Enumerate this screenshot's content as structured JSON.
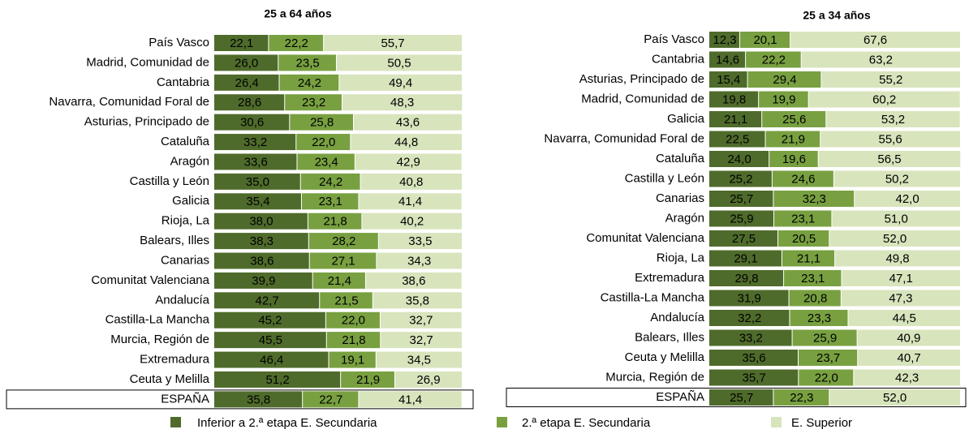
{
  "chart_data": [
    {
      "type": "stacked-bar-horizontal",
      "title": "25 a 64 años",
      "categories": [
        "País Vasco",
        "Madrid, Comunidad de",
        "Cantabria",
        "Navarra, Comunidad Foral de",
        "Asturias, Principado de",
        "Cataluña",
        "Aragón",
        "Castilla y León",
        "Galicia",
        "Rioja, La",
        "Balears, Illes",
        "Canarias",
        "Comunitat Valenciana",
        "Andalucía",
        "Castilla-La Mancha",
        "Murcia, Región de",
        "Extremadura",
        "Ceuta y Melilla",
        "ESPAÑA"
      ],
      "xlim": [
        0,
        100
      ],
      "series": [
        {
          "name": "Inferior a  2.ª etapa E. Secundaria",
          "color": "#4f6b2b",
          "values": [
            22.1,
            26.0,
            26.4,
            28.6,
            30.6,
            33.2,
            33.6,
            35.0,
            35.4,
            38.0,
            38.3,
            38.6,
            39.9,
            42.7,
            45.2,
            45.5,
            46.4,
            51.2,
            35.8
          ],
          "value_labels": [
            "22,1",
            "26,0",
            "26,4",
            "28,6",
            "30,6",
            "33,2",
            "33,6",
            "35,0",
            "35,4",
            "38,0",
            "38,3",
            "38,6",
            "39,9",
            "42,7",
            "45,2",
            "45,5",
            "46,4",
            "51,2",
            "35,8"
          ]
        },
        {
          "name": "2.ª etapa E. Secundaria",
          "color": "#78a040",
          "values": [
            22.2,
            23.5,
            24.2,
            23.2,
            25.8,
            22.0,
            23.4,
            24.2,
            23.1,
            21.8,
            28.2,
            27.1,
            21.4,
            21.5,
            22.0,
            21.8,
            19.1,
            21.9,
            22.7
          ],
          "value_labels": [
            "22,2",
            "23,5",
            "24,2",
            "23,2",
            "25,8",
            "22,0",
            "23,4",
            "24,2",
            "23,1",
            "21,8",
            "28,2",
            "27,1",
            "21,4",
            "21,5",
            "22,0",
            "21,8",
            "19,1",
            "21,9",
            "22,7"
          ]
        },
        {
          "name": "E. Superior",
          "color": "#d8e4bc",
          "values": [
            55.7,
            50.5,
            49.4,
            48.3,
            43.6,
            44.8,
            42.9,
            40.8,
            41.4,
            40.2,
            33.5,
            34.3,
            38.6,
            35.8,
            32.7,
            32.7,
            34.5,
            26.9,
            41.4
          ],
          "value_labels": [
            "55,7",
            "50,5",
            "49,4",
            "48,3",
            "43,6",
            "44,8",
            "42,9",
            "40,8",
            "41,4",
            "40,2",
            "33,5",
            "34,3",
            "38,6",
            "35,8",
            "32,7",
            "32,7",
            "34,5",
            "26,9",
            "41,4"
          ]
        }
      ]
    },
    {
      "type": "stacked-bar-horizontal",
      "title": "25 a 34 años",
      "categories": [
        "País Vasco",
        "Cantabria",
        "Asturias, Principado de",
        "Madrid, Comunidad de",
        "Galicia",
        "Navarra, Comunidad Foral de",
        "Cataluña",
        "Castilla y León",
        "Canarias",
        "Aragón",
        "Comunitat Valenciana",
        "Rioja, La",
        "Extremadura",
        "Castilla-La Mancha",
        "Andalucía",
        "Balears, Illes",
        "Ceuta y Melilla",
        "Murcia, Región de",
        "ESPAÑA"
      ],
      "xlim": [
        0,
        100
      ],
      "series": [
        {
          "name": "Inferior a  2.ª etapa E. Secundaria",
          "color": "#4f6b2b",
          "values": [
            12.3,
            14.6,
            15.4,
            19.8,
            21.1,
            22.5,
            24.0,
            25.2,
            25.7,
            25.9,
            27.5,
            29.1,
            29.8,
            31.9,
            32.2,
            33.2,
            35.6,
            35.7,
            25.7
          ],
          "value_labels": [
            "12,3",
            "14,6",
            "15,4",
            "19,8",
            "21,1",
            "22,5",
            "24,0",
            "25,2",
            "25,7",
            "25,9",
            "27,5",
            "29,1",
            "29,8",
            "31,9",
            "32,2",
            "33,2",
            "35,6",
            "35,7",
            "25,7"
          ]
        },
        {
          "name": "2.ª etapa E. Secundaria",
          "color": "#78a040",
          "values": [
            20.1,
            22.2,
            29.4,
            19.9,
            25.6,
            21.9,
            19.6,
            24.6,
            32.3,
            23.1,
            20.5,
            21.1,
            23.1,
            20.8,
            23.3,
            25.9,
            23.7,
            22.0,
            22.3
          ],
          "value_labels": [
            "20,1",
            "22,2",
            "29,4",
            "19,9",
            "25,6",
            "21,9",
            "19,6",
            "24,6",
            "32,3",
            "23,1",
            "20,5",
            "21,1",
            "23,1",
            "20,8",
            "23,3",
            "25,9",
            "23,7",
            "22,0",
            "22,3"
          ]
        },
        {
          "name": "E. Superior",
          "color": "#d8e4bc",
          "values": [
            67.6,
            63.2,
            55.2,
            60.2,
            53.2,
            55.6,
            56.5,
            50.2,
            42.0,
            51.0,
            52.0,
            49.8,
            47.1,
            47.3,
            44.5,
            40.9,
            40.7,
            42.3,
            52.0
          ],
          "value_labels": [
            "67,6",
            "63,2",
            "55,2",
            "60,2",
            "53,2",
            "55,6",
            "56,5",
            "50,2",
            "42,0",
            "51,0",
            "52,0",
            "49,8",
            "47,1",
            "47,3",
            "44,5",
            "40,9",
            "40,7",
            "42,3",
            "52,0"
          ]
        }
      ]
    }
  ]
}
